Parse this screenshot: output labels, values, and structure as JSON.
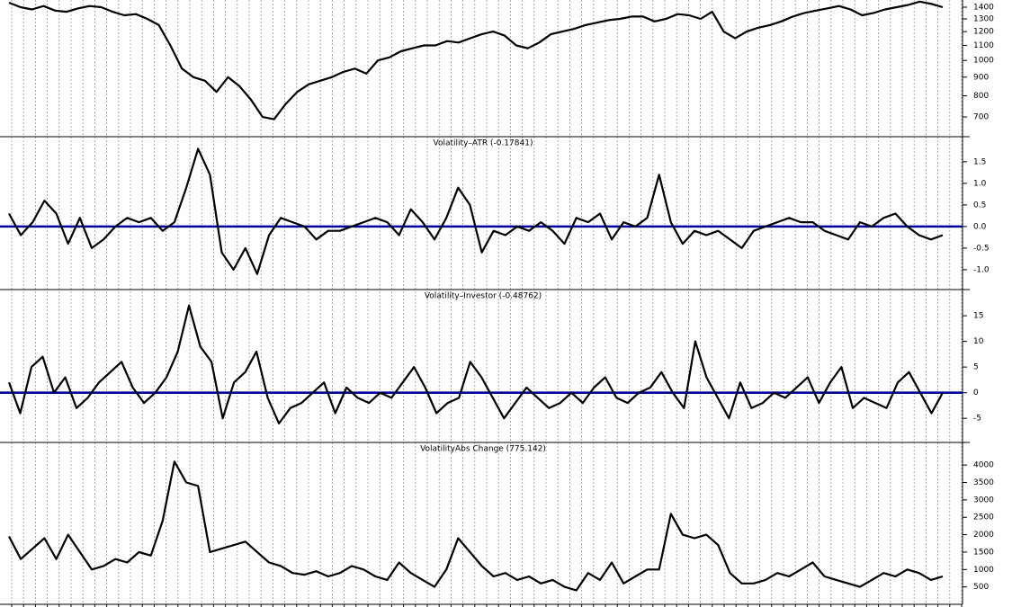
{
  "chart_data": [
    {
      "type": "line",
      "log_scale": true,
      "ylim": [
        618,
        1465
      ],
      "yticks": [
        700,
        800,
        900,
        1000,
        1100,
        1200,
        1300,
        1400
      ],
      "series": [
        {
          "color": "#000000",
          "values": [
            1440,
            1400,
            1380,
            1410,
            1370,
            1360,
            1390,
            1410,
            1400,
            1360,
            1330,
            1340,
            1300,
            1250,
            1100,
            950,
            900,
            880,
            820,
            900,
            850,
            780,
            700,
            690,
            760,
            820,
            860,
            880,
            900,
            930,
            950,
            920,
            1000,
            1020,
            1060,
            1080,
            1100,
            1100,
            1130,
            1120,
            1150,
            1180,
            1200,
            1170,
            1100,
            1080,
            1120,
            1180,
            1200,
            1220,
            1250,
            1270,
            1290,
            1300,
            1320,
            1320,
            1280,
            1300,
            1340,
            1330,
            1300,
            1360,
            1200,
            1150,
            1200,
            1230,
            1250,
            1280,
            1320,
            1350,
            1370,
            1390,
            1410,
            1380,
            1330,
            1350,
            1380,
            1400,
            1420,
            1450,
            1430,
            1400
          ]
        }
      ]
    },
    {
      "type": "line",
      "title": "Volatility–ATR (-0.17841)",
      "ylim": [
        -1.46,
        2.08
      ],
      "yticks": [
        {
          "value": -1,
          "label": "-1.0"
        },
        -0.5,
        {
          "value": 0,
          "label": "0.0"
        },
        0.5,
        {
          "value": 1,
          "label": "1.0"
        },
        1.5
      ],
      "reference_line": {
        "value": 0,
        "color": "#00009c"
      },
      "series": [
        {
          "color": "#000000",
          "values": [
            0.3,
            -0.2,
            0.1,
            0.6,
            0.3,
            -0.4,
            0.2,
            -0.5,
            -0.3,
            0,
            0.2,
            0.1,
            0.2,
            -0.1,
            0.1,
            0.9,
            1.8,
            1.2,
            -0.6,
            -1.0,
            -0.5,
            -1.1,
            -0.2,
            0.2,
            0.1,
            0.0,
            -0.3,
            -0.1,
            -0.1,
            0.0,
            0.1,
            0.2,
            0.1,
            -0.2,
            0.4,
            0.1,
            -0.3,
            0.2,
            0.9,
            0.5,
            -0.6,
            -0.1,
            -0.2,
            0.0,
            -0.1,
            0.1,
            -0.1,
            -0.4,
            0.2,
            0.1,
            0.3,
            -0.3,
            0.1,
            0.0,
            0.2,
            1.2,
            0.1,
            -0.4,
            -0.1,
            -0.2,
            -0.1,
            -0.3,
            -0.5,
            -0.1,
            0.0,
            0.1,
            0.2,
            0.1,
            0.1,
            -0.1,
            -0.2,
            -0.3,
            0.1,
            0.0,
            0.2,
            0.3,
            0.0,
            -0.2,
            -0.3,
            -0.2
          ]
        }
      ]
    },
    {
      "type": "line",
      "title": "Volatility–Investor (-0.48762)",
      "ylim": [
        -9.7,
        20.1
      ],
      "yticks": [
        -5,
        0,
        5,
        10,
        15
      ],
      "reference_line": {
        "value": 0,
        "color": "#00009c"
      },
      "series": [
        {
          "color": "#000000",
          "values": [
            2,
            -4,
            5,
            7,
            0,
            3,
            -3,
            -1,
            2,
            4,
            6,
            1,
            -2,
            0,
            3,
            8,
            17,
            9,
            6,
            -5,
            2,
            4,
            8,
            -1,
            -6,
            -3,
            -2,
            0,
            2,
            -4,
            1,
            -1,
            -2,
            0,
            -1,
            2,
            5,
            1,
            -4,
            -2,
            -1,
            6,
            3,
            -1,
            -5,
            -2,
            1,
            -1,
            -3,
            -2,
            0,
            -2,
            1,
            3,
            -1,
            -2,
            0,
            1,
            4,
            0,
            -3,
            10,
            3,
            -1,
            -5,
            2,
            -3,
            -2,
            0,
            -1,
            1,
            3,
            -2,
            2,
            5,
            -3,
            -1,
            -2,
            -3,
            2,
            4,
            0,
            -4,
            0
          ]
        }
      ]
    },
    {
      "type": "line",
      "title": "VolatilityAbs Change (775.142)",
      "ylim": [
        0,
        4650
      ],
      "yticks": [
        500,
        1000,
        1500,
        2000,
        2500,
        3000,
        3500,
        4000
      ],
      "series": [
        {
          "color": "#000000",
          "values": [
            1950,
            1300,
            1600,
            1900,
            1300,
            2000,
            1500,
            1000,
            1100,
            1300,
            1200,
            1500,
            1400,
            2400,
            4100,
            3500,
            3400,
            1500,
            1600,
            1700,
            1800,
            1500,
            1200,
            1100,
            900,
            850,
            950,
            800,
            900,
            1100,
            1000,
            800,
            700,
            1200,
            900,
            700,
            500,
            1000,
            1900,
            1500,
            1100,
            800,
            900,
            700,
            800,
            600,
            700,
            500,
            400,
            900,
            700,
            1200,
            600,
            800,
            1000,
            1000,
            2600,
            2000,
            1900,
            2000,
            1700,
            900,
            600,
            600,
            700,
            900,
            800,
            1000,
            1200,
            800,
            700,
            600,
            500,
            700,
            900,
            800,
            1000,
            900,
            700,
            800
          ]
        }
      ]
    }
  ]
}
